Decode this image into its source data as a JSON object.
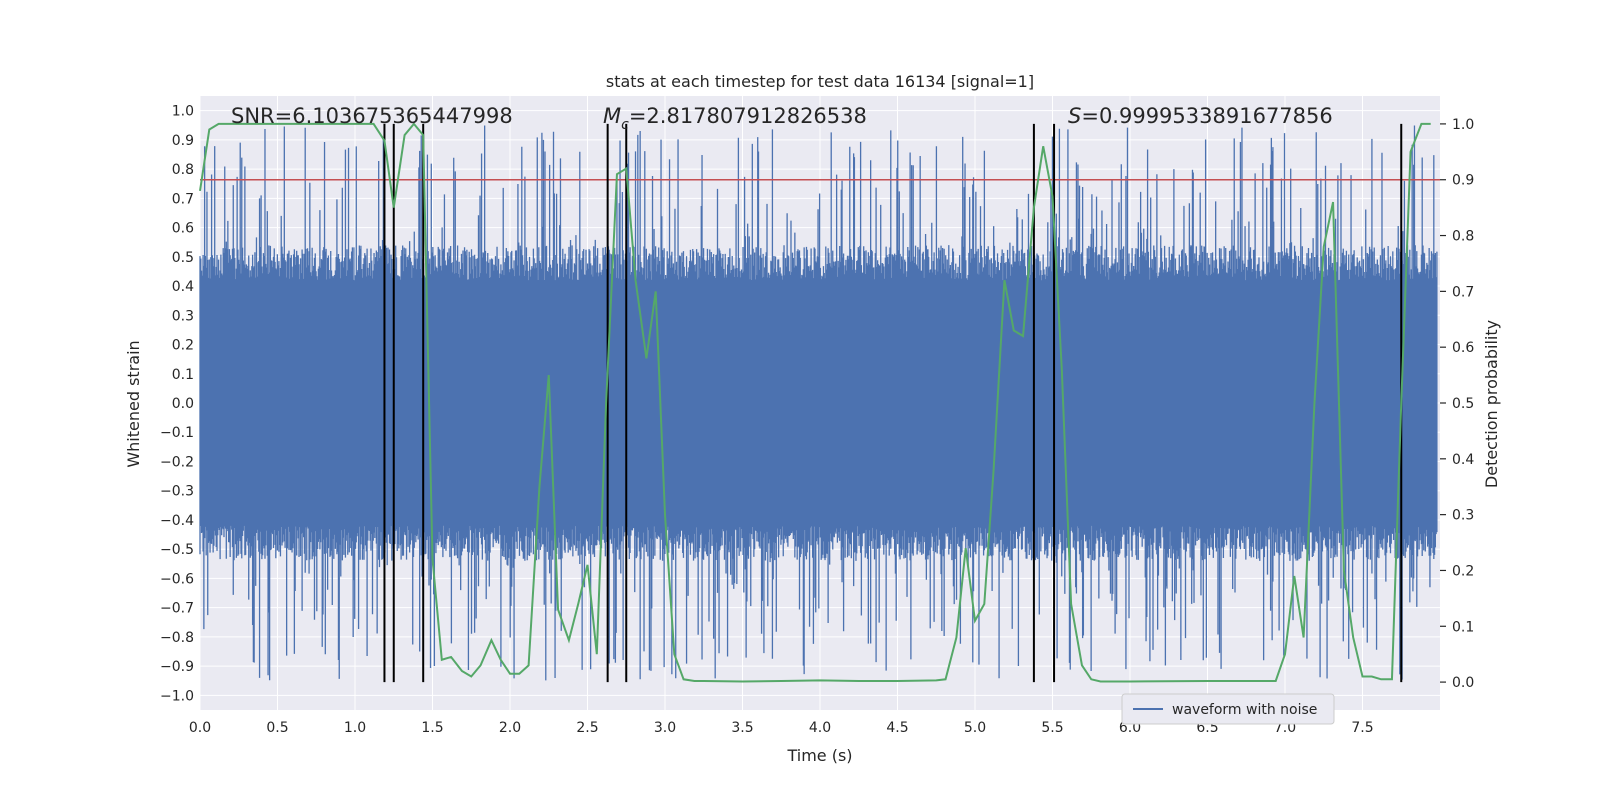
{
  "chart_data": {
    "type": "line",
    "title": "stats at each timestep for test data 16134 [signal=1]",
    "xlabel": "Time (s)",
    "ylabel_left": "Whitened strain",
    "ylabel_right": "Detection probability",
    "xlim": [
      0.0,
      8.0
    ],
    "ylim_left": [
      -1.05,
      1.05
    ],
    "ylim_right": [
      -0.05,
      1.05
    ],
    "grid": true,
    "x_ticks": [
      0.0,
      0.5,
      1.0,
      1.5,
      2.0,
      2.5,
      3.0,
      3.5,
      4.0,
      4.5,
      5.0,
      5.5,
      6.0,
      6.5,
      7.0,
      7.5
    ],
    "x_tick_labels": [
      "0.0",
      "0.5",
      "1.0",
      "1.5",
      "2.0",
      "2.5",
      "3.0",
      "3.5",
      "4.0",
      "4.5",
      "5.0",
      "5.5",
      "6.0",
      "6.5",
      "7.0",
      "7.5"
    ],
    "y_left_ticks": [
      1.0,
      0.9,
      0.8,
      0.7,
      0.6,
      0.5,
      0.4,
      0.3,
      0.2,
      0.1,
      0.0,
      -0.1,
      -0.2,
      -0.3,
      -0.4,
      -0.5,
      -0.6,
      -0.7,
      -0.8,
      -0.9,
      -1.0
    ],
    "y_left_tick_labels": [
      "1.0",
      "0.9",
      "0.8",
      "0.7",
      "0.6",
      "0.5",
      "0.4",
      "0.3",
      "0.2",
      "0.1",
      "0.0",
      "−0.1",
      "−0.2",
      "−0.3",
      "−0.4",
      "−0.5",
      "−0.6",
      "−0.7",
      "−0.8",
      "−0.9",
      "−1.0"
    ],
    "y_right_ticks": [
      1.0,
      0.9,
      0.8,
      0.7,
      0.6,
      0.5,
      0.4,
      0.3,
      0.2,
      0.1,
      0.0
    ],
    "y_right_tick_labels": [
      "1.0",
      "0.9",
      "0.8",
      "0.7",
      "0.6",
      "0.5",
      "0.4",
      "0.3",
      "0.2",
      "0.1",
      "0.0"
    ],
    "annotations": {
      "snr": "SNR=6.103675365447998",
      "mc_symbol": "M",
      "mc_subscript": "c",
      "mc_value": "=2.817807912826538",
      "s_symbol": "S",
      "s_value": "=0.9999533891677856"
    },
    "threshold": {
      "value": 0.9,
      "axis": "right",
      "color": "#c44e52"
    },
    "vertical_lines": [
      1.19,
      1.25,
      1.44,
      2.63,
      2.75,
      5.38,
      5.51,
      7.75
    ],
    "legend": {
      "label": "waveform with noise",
      "position": "bottom-right"
    },
    "series": [
      {
        "name": "waveform with noise",
        "axis": "left",
        "color": "#4c72b0",
        "kind": "noise",
        "n_samples": 1600,
        "core_amplitude": 0.42,
        "peak_max": 0.95
      },
      {
        "name": "Detection probability",
        "axis": "right",
        "color": "#55a868",
        "x": [
          0.0,
          0.06,
          0.12,
          0.25,
          0.5,
          0.75,
          1.0,
          1.12,
          1.19,
          1.25,
          1.32,
          1.38,
          1.44,
          1.5,
          1.56,
          1.62,
          1.69,
          1.75,
          1.81,
          1.88,
          1.94,
          2.0,
          2.06,
          2.12,
          2.19,
          2.25,
          2.31,
          2.38,
          2.44,
          2.5,
          2.56,
          2.62,
          2.69,
          2.75,
          2.81,
          2.88,
          2.94,
          3.0,
          3.06,
          3.12,
          3.19,
          3.25,
          3.5,
          3.75,
          4.0,
          4.25,
          4.5,
          4.75,
          4.81,
          4.88,
          4.94,
          5.0,
          5.06,
          5.12,
          5.19,
          5.25,
          5.31,
          5.38,
          5.44,
          5.5,
          5.56,
          5.62,
          5.69,
          5.75,
          5.81,
          5.88,
          5.94,
          6.0,
          6.5,
          6.75,
          6.94,
          7.0,
          7.06,
          7.12,
          7.19,
          7.25,
          7.31,
          7.38,
          7.44,
          7.5,
          7.56,
          7.62,
          7.69,
          7.75,
          7.81,
          7.88,
          7.94
        ],
        "y": [
          0.88,
          0.99,
          1.0,
          1.0,
          1.0,
          1.0,
          1.0,
          1.0,
          0.97,
          0.85,
          0.98,
          1.0,
          0.98,
          0.22,
          0.04,
          0.045,
          0.02,
          0.01,
          0.03,
          0.075,
          0.04,
          0.015,
          0.015,
          0.03,
          0.35,
          0.55,
          0.13,
          0.075,
          0.14,
          0.21,
          0.05,
          0.5,
          0.91,
          0.92,
          0.72,
          0.58,
          0.7,
          0.3,
          0.05,
          0.005,
          0.002,
          0.002,
          0.001,
          0.002,
          0.003,
          0.002,
          0.002,
          0.003,
          0.005,
          0.08,
          0.24,
          0.11,
          0.14,
          0.38,
          0.72,
          0.63,
          0.62,
          0.85,
          0.96,
          0.87,
          0.56,
          0.14,
          0.03,
          0.005,
          0.001,
          0.001,
          0.001,
          0.001,
          0.002,
          0.002,
          0.002,
          0.05,
          0.19,
          0.08,
          0.5,
          0.78,
          0.86,
          0.2,
          0.08,
          0.01,
          0.01,
          0.005,
          0.005,
          0.5,
          0.95,
          1.0,
          1.0
        ]
      }
    ]
  }
}
